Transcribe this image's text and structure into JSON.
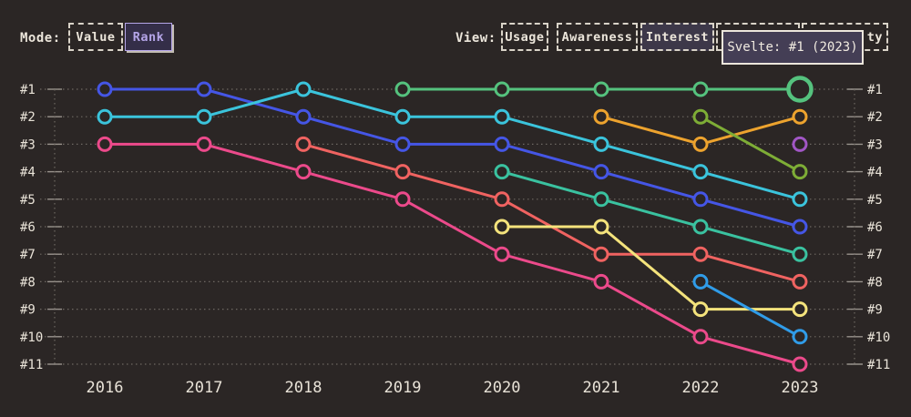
{
  "panel": {
    "background": "#2b2625",
    "text_color": "#e9e3d8"
  },
  "controls": {
    "mode": {
      "label": "Mode:",
      "options": [
        {
          "label": "Value",
          "selected": false
        },
        {
          "label": "Rank",
          "selected": true
        }
      ],
      "selected_accent": "#b5a5e8"
    },
    "view": {
      "label": "View:",
      "options": [
        {
          "label": "Usage",
          "selected": false
        },
        {
          "label": "Awareness",
          "selected": false
        },
        {
          "label": "Interest",
          "selected": true
        },
        {
          "label": "",
          "selected": false,
          "occluded_by_tooltip": true
        },
        {
          "label": "ty",
          "selected": false,
          "occluded_by_tooltip": true
        }
      ]
    }
  },
  "tooltip": {
    "text": "Svelte: #1 (2023)",
    "background": "#443e55",
    "border": "#ece6dc"
  },
  "chart_data": {
    "type": "line",
    "subtype": "rank-bump-chart",
    "x_labels": [
      "2016",
      "2017",
      "2018",
      "2019",
      "2020",
      "2021",
      "2022",
      "2023"
    ],
    "rank_labels": [
      "#1",
      "#2",
      "#3",
      "#4",
      "#5",
      "#6",
      "#7",
      "#8",
      "#9",
      "#10",
      "#11"
    ],
    "ylim": [
      1,
      11
    ],
    "grid": "dotted horizontal lines per rank, dotted vertical axis lines both sides",
    "legend": "none (tooltip identifies green series as Svelte)",
    "series": [
      {
        "name": "royal-blue-line",
        "color": "#4556e6",
        "points": [
          [
            2016,
            1
          ],
          [
            2017,
            1
          ],
          [
            2018,
            2
          ],
          [
            2019,
            3
          ],
          [
            2020,
            3
          ],
          [
            2021,
            4
          ],
          [
            2022,
            5
          ],
          [
            2023,
            6
          ]
        ]
      },
      {
        "name": "cyan-line",
        "color": "#3bc4dc",
        "points": [
          [
            2016,
            2
          ],
          [
            2017,
            2
          ],
          [
            2018,
            1
          ],
          [
            2019,
            2
          ],
          [
            2020,
            2
          ],
          [
            2021,
            3
          ],
          [
            2022,
            4
          ],
          [
            2023,
            5
          ]
        ]
      },
      {
        "name": "magenta-line",
        "color": "#ec4a8b",
        "points": [
          [
            2016,
            3
          ],
          [
            2017,
            3
          ],
          [
            2018,
            4
          ],
          [
            2019,
            5
          ],
          [
            2020,
            7
          ],
          [
            2021,
            8
          ],
          [
            2022,
            10
          ],
          [
            2023,
            11
          ]
        ]
      },
      {
        "name": "salmon-line",
        "color": "#f06361",
        "points": [
          [
            2018,
            3
          ],
          [
            2019,
            4
          ],
          [
            2020,
            5
          ],
          [
            2021,
            7
          ],
          [
            2022,
            7
          ],
          [
            2023,
            8
          ]
        ]
      },
      {
        "name": "svelte",
        "color": "#55c27e",
        "points": [
          [
            2019,
            1
          ],
          [
            2020,
            1
          ],
          [
            2021,
            1
          ],
          [
            2022,
            1
          ],
          [
            2023,
            1
          ]
        ],
        "highlight_year": 2023
      },
      {
        "name": "teal-line",
        "color": "#3ac2a0",
        "points": [
          [
            2020,
            4
          ],
          [
            2021,
            5
          ],
          [
            2022,
            6
          ],
          [
            2023,
            7
          ]
        ]
      },
      {
        "name": "yellow-line",
        "color": "#f4e37c",
        "points": [
          [
            2020,
            6
          ],
          [
            2021,
            6
          ],
          [
            2022,
            9
          ],
          [
            2023,
            9
          ]
        ]
      },
      {
        "name": "amber-line",
        "color": "#eda32e",
        "points": [
          [
            2021,
            2
          ],
          [
            2022,
            3
          ],
          [
            2023,
            2
          ]
        ]
      },
      {
        "name": "olive-line",
        "color": "#7ead36",
        "points": [
          [
            2022,
            2
          ],
          [
            2023,
            4
          ]
        ]
      },
      {
        "name": "sky-line",
        "color": "#309ce8",
        "points": [
          [
            2022,
            8
          ],
          [
            2023,
            10
          ]
        ]
      },
      {
        "name": "purple-line",
        "color": "#a156c5",
        "points": [
          [
            2023,
            3
          ]
        ]
      }
    ]
  }
}
